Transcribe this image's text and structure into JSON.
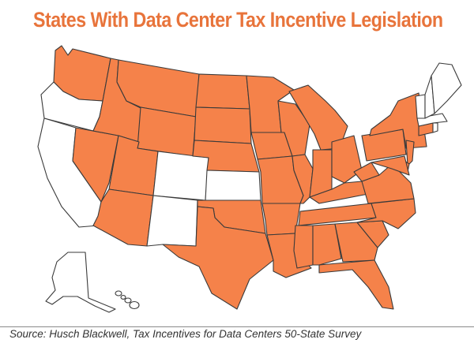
{
  "title": "States With Data Center Tax Incentive Legislation",
  "source": "Source: Husch Blackwell, Tax Incentives for Data Centers 50-State Survey",
  "colors": {
    "title": "#e8743b",
    "incentive": "#f5824a",
    "no_incentive": "#ffffff",
    "border": "#3a3a3a",
    "background": "#ffffff"
  },
  "states_with_incentive_legislation": [
    "WA",
    "ID",
    "MT",
    "WY",
    "ND",
    "MN",
    "WI",
    "IA",
    "MO",
    "IL",
    "MI",
    "IN",
    "OH",
    "KY",
    "TN",
    "AR",
    "LA",
    "MS",
    "AL",
    "GA",
    "FL",
    "SC",
    "NC",
    "VA",
    "WV",
    "PA",
    "NY",
    "NJ",
    "DE",
    "MD",
    "CT",
    "NV",
    "UT",
    "AZ",
    "TX",
    "OK",
    "NE",
    "SD"
  ],
  "states_without": [
    "OR",
    "CA",
    "CO",
    "NM",
    "KS",
    "ME",
    "VT",
    "NH",
    "MA",
    "RI",
    "AK",
    "HI"
  ]
}
